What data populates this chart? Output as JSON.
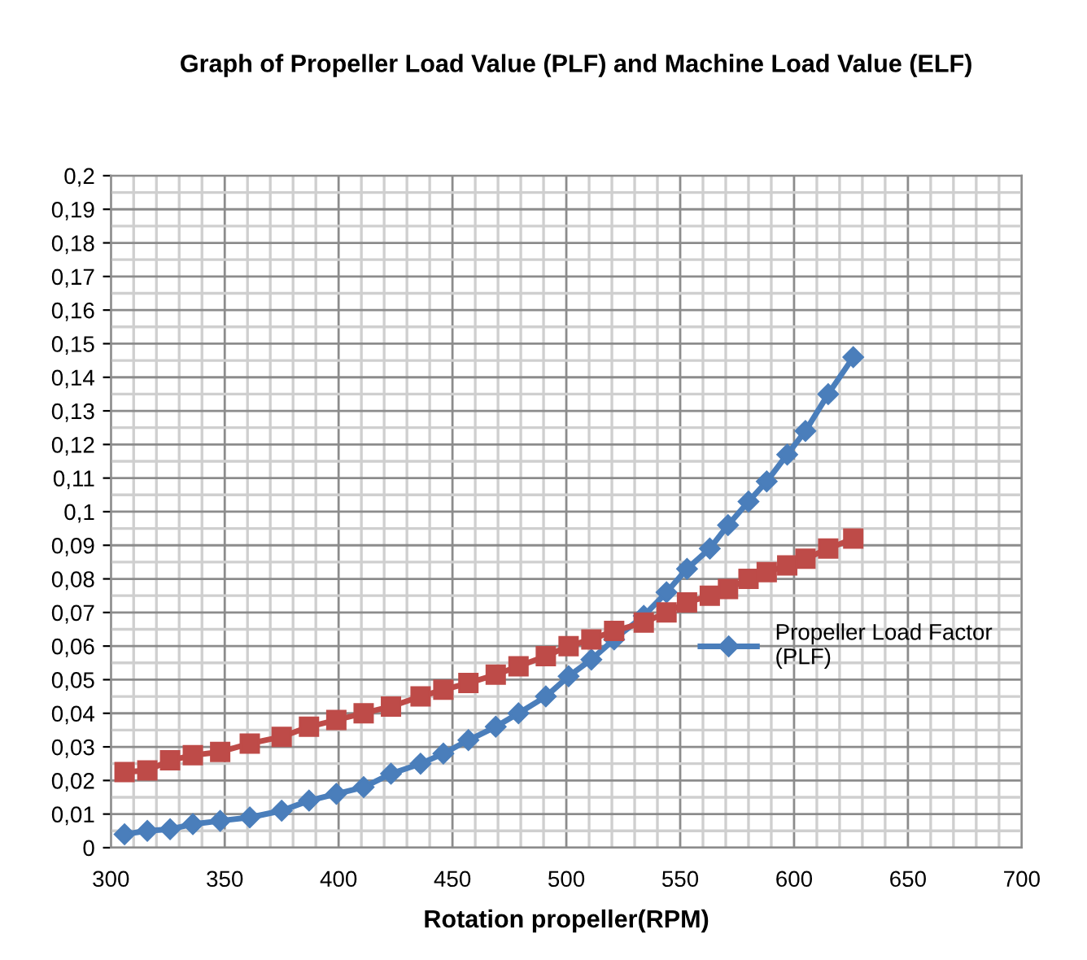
{
  "chart_data": {
    "type": "line",
    "title": "Graph of Propeller Load Value (PLF) and Machine Load Value (ELF)",
    "xlabel": "Rotation propeller(RPM)",
    "x": [
      306,
      316,
      326,
      336,
      348,
      361,
      375,
      387,
      399,
      411,
      423,
      436,
      446,
      457,
      469,
      479,
      491,
      501,
      511,
      521,
      534,
      544,
      553,
      563,
      571,
      580,
      588,
      597,
      605,
      615,
      626
    ],
    "series": [
      {
        "name": "Propeller Load Factor (PLF)",
        "color": "#4a7ebb",
        "marker": "diamond",
        "values": [
          0.004,
          0.005,
          0.0055,
          0.007,
          0.008,
          0.009,
          0.011,
          0.014,
          0.016,
          0.018,
          0.022,
          0.025,
          0.028,
          0.032,
          0.036,
          0.04,
          0.045,
          0.051,
          0.056,
          0.062,
          0.069,
          0.076,
          0.083,
          0.089,
          0.096,
          0.103,
          0.109,
          0.117,
          0.124,
          0.135,
          0.146
        ]
      },
      {
        "color": "#be4b48",
        "marker": "square",
        "values": [
          0.0225,
          0.023,
          0.026,
          0.0275,
          0.0285,
          0.031,
          0.033,
          0.036,
          0.038,
          0.04,
          0.042,
          0.045,
          0.047,
          0.049,
          0.0515,
          0.054,
          0.057,
          0.06,
          0.062,
          0.0645,
          0.067,
          0.07,
          0.073,
          0.075,
          0.077,
          0.08,
          0.082,
          0.084,
          0.086,
          0.089,
          0.092
        ]
      }
    ],
    "xlim": [
      300,
      700
    ],
    "xticks": [
      300,
      350,
      400,
      450,
      500,
      550,
      600,
      650,
      700
    ],
    "ylim": [
      0,
      0.2
    ],
    "yticks": [
      0,
      {
        "value": 0.01,
        "label": "0,01"
      },
      {
        "value": 0.02,
        "label": "0,02"
      },
      {
        "value": 0.03,
        "label": "0,03"
      },
      {
        "value": 0.04,
        "label": "0,04"
      },
      {
        "value": 0.05,
        "label": "0,05"
      },
      {
        "value": 0.06,
        "label": "0,06"
      },
      {
        "value": 0.07,
        "label": "0,07"
      },
      {
        "value": 0.08,
        "label": "0,08"
      },
      {
        "value": 0.09,
        "label": "0,09"
      },
      {
        "value": 0.1,
        "label": "0,1"
      },
      {
        "value": 0.11,
        "label": "0,11"
      },
      {
        "value": 0.12,
        "label": "0,12"
      },
      {
        "value": 0.13,
        "label": "0,13"
      },
      {
        "value": 0.14,
        "label": "0,14"
      },
      {
        "value": 0.15,
        "label": "0,15"
      },
      {
        "value": 0.16,
        "label": "0,16"
      },
      {
        "value": 0.17,
        "label": "0,17"
      },
      {
        "value": 0.18,
        "label": "0,18"
      },
      {
        "value": 0.19,
        "label": "0,19"
      },
      {
        "value": 0.2,
        "label": "0,2"
      }
    ],
    "grid": true,
    "legend": "right",
    "line_style": "solid"
  }
}
